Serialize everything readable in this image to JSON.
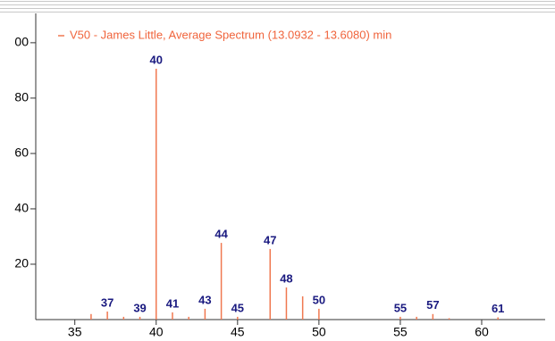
{
  "chart_data": {
    "type": "stem",
    "series": [
      {
        "name": "V50 - James Little, Average Spectrum (13.0932 - 13.6080) min",
        "color": "#f07850",
        "x": [
          36,
          37,
          38,
          39,
          40,
          41,
          42,
          43,
          44,
          45,
          47,
          48,
          49,
          50,
          55,
          56,
          57,
          58,
          61
        ],
        "values": [
          2,
          2.9,
          1,
          1,
          90.6,
          2.6,
          1,
          3.9,
          27.7,
          1,
          25.5,
          11.6,
          8.4,
          3.9,
          1,
          1,
          2,
          0.5,
          0.8
        ],
        "labels": [
          null,
          "37",
          null,
          "39",
          "40",
          "41",
          null,
          "43",
          "44",
          "45",
          "47",
          "48",
          null,
          "50",
          "55",
          null,
          "57",
          null,
          "61"
        ]
      }
    ],
    "xlim": [
      32.6,
      63.9
    ],
    "xticks": [
      35,
      40,
      45,
      50,
      55,
      60
    ],
    "ylim": [
      0,
      110.6
    ],
    "yticks": [
      20,
      40,
      60,
      80,
      {
        "value": 100,
        "label": "00"
      }
    ]
  }
}
